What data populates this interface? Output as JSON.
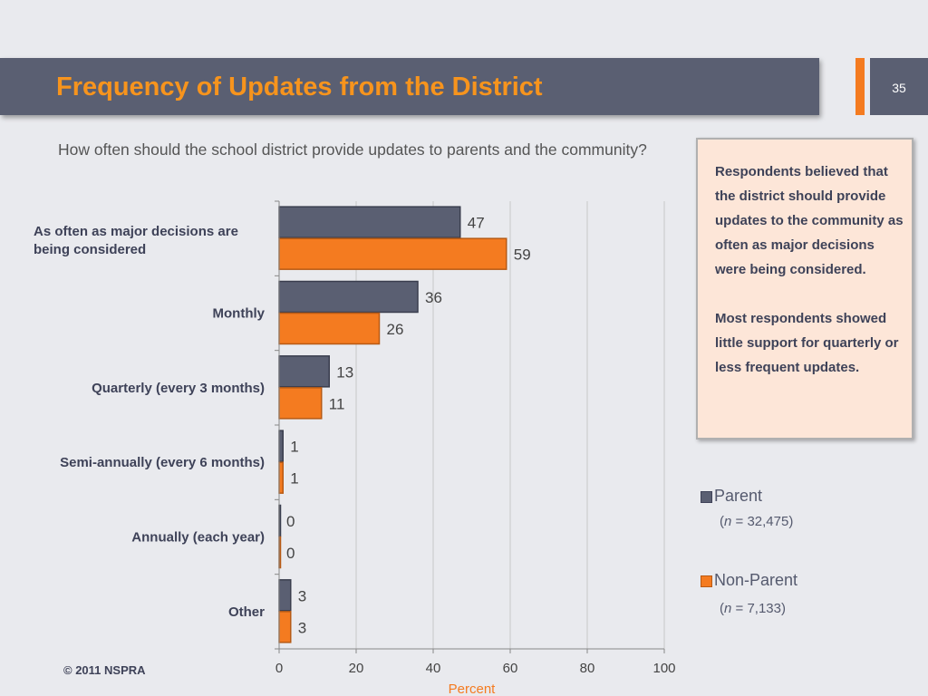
{
  "slide": {
    "title": "Frequency of Updates from the District",
    "page_number": "35",
    "question": "How often should the school district provide updates to parents and the community?",
    "callout": {
      "paragraph1": "Respondents believed that the district should provide updates to the community as often as major decisions were being considered.",
      "paragraph2": "Most respondents showed little support for quarterly or less frequent updates."
    },
    "legend": {
      "parent_label": "Parent",
      "parent_n_prefix": "(",
      "parent_n_var": "n",
      "parent_n_value": " = 32,475)",
      "nonparent_label": "Non-Parent",
      "nonparent_n_prefix": "(",
      "nonparent_n_var": "n",
      "nonparent_n_value": " = 7,133)"
    },
    "copyright": "© 2011 NSPRA",
    "colors": {
      "title_bar": "#5a5f72",
      "title_text": "#f7941d",
      "accent": "#f47b20",
      "parent": "#5a5f72",
      "nonparent": "#f47b20",
      "callout_bg": "#fde6d8"
    }
  },
  "chart_data": {
    "type": "bar",
    "orientation": "horizontal",
    "categories": [
      "As often as major decisions are being considered",
      "Monthly",
      "Quarterly (every 3 months)",
      "Semi-annually (every 6 months)",
      "Annually (each year)",
      "Other"
    ],
    "series": [
      {
        "name": "Parent",
        "values": [
          47,
          36,
          13,
          1,
          0,
          3
        ],
        "color": "#5a5f72"
      },
      {
        "name": "Non-Parent",
        "values": [
          59,
          26,
          11,
          1,
          0,
          3
        ],
        "color": "#f47b20"
      }
    ],
    "x_ticks": [
      0,
      20,
      40,
      60,
      80,
      100
    ],
    "xlim": [
      0,
      100
    ],
    "xlabel": "Percent",
    "grid": true,
    "legend_position": "right"
  }
}
